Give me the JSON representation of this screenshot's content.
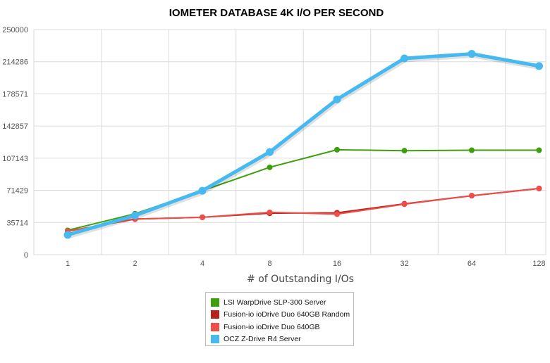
{
  "chart_data": {
    "type": "line",
    "title": "IOMETER DATABASE 4K I/O PER SECOND",
    "xlabel": "# of Outstanding I/Os",
    "ylabel": "",
    "categories": [
      "1",
      "2",
      "4",
      "8",
      "16",
      "32",
      "64",
      "128"
    ],
    "yticks": [
      "0",
      "35714",
      "71429",
      "107143",
      "142857",
      "178571",
      "214286",
      "250000"
    ],
    "ylim": [
      0,
      250000
    ],
    "grid": true,
    "legend_position": "bottom",
    "series": [
      {
        "name": "LSI WarpDrive SLP-300 Server",
        "color": "#3d9f0c",
        "values": [
          27000,
          45500,
          71000,
          97000,
          116500,
          115500,
          116000,
          116000
        ]
      },
      {
        "name": "Fusion-io ioDrive Duo 640GB Random",
        "color": "#b9221c",
        "values": [
          26000,
          39500,
          41500,
          46000,
          46500,
          56500,
          65500,
          73500
        ]
      },
      {
        "name": "Fusion-io ioDrive Duo 640GB",
        "color": "#ee4e48",
        "values": [
          26000,
          39500,
          41500,
          47000,
          45000,
          56000,
          65500,
          73500
        ]
      },
      {
        "name": "OCZ Z-Drive R4 Server",
        "color": "#46b9f0",
        "values": [
          22000,
          43500,
          71000,
          114000,
          172500,
          218000,
          223000,
          209500
        ]
      }
    ]
  }
}
